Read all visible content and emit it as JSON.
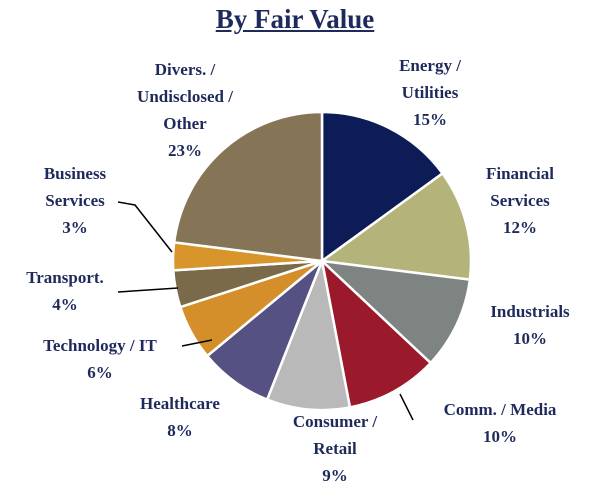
{
  "chart_data": {
    "type": "pie",
    "title": "By Fair Value",
    "categories": [
      "Energy / Utilities",
      "Financial Services",
      "Industrials",
      "Comm. / Media",
      "Consumer / Retail",
      "Healthcare",
      "Technology / IT",
      "Transport.",
      "Business Services",
      "Divers. / Undisclosed / Other"
    ],
    "values": [
      15,
      12,
      10,
      10,
      9,
      8,
      6,
      4,
      3,
      23
    ],
    "value_labels": [
      "15%",
      "12%",
      "10%",
      "10%",
      "9%",
      "8%",
      "6%",
      "4%",
      "3%",
      "23%"
    ],
    "colors": [
      "#0d1c57",
      "#b4b47a",
      "#7e8481",
      "#9a1a2c",
      "#b9b9b9",
      "#555283",
      "#d48f2a",
      "#7a6a4a",
      "#d7952c",
      "#857456"
    ]
  }
}
